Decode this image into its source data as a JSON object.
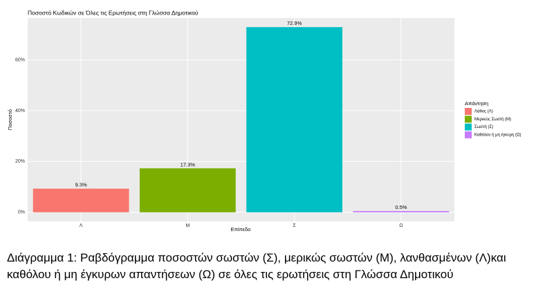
{
  "chart_data": {
    "type": "bar",
    "title": "Ποσοστό Κωδικών σε Όλες τις Ερωτήσεις στη Γλώσσα Δημοτικού",
    "x_label": "Επίπεδο",
    "y_label": "Ποσοστό",
    "categories": [
      "Λ",
      "Μ",
      "Σ",
      "Ω"
    ],
    "values": [
      9.3,
      17.3,
      72.9,
      0.5
    ],
    "value_labels": [
      "9.3%",
      "17.3%",
      "72.9%",
      "0.5%"
    ],
    "colors": [
      "#F8766D",
      "#7CAE00",
      "#00BFC4",
      "#C77CFF"
    ],
    "ylim": [
      -3.6,
      76.5
    ],
    "yticks": [
      {
        "value": 0,
        "label": "0%"
      },
      {
        "value": 20,
        "label": "20%"
      },
      {
        "value": 40,
        "label": "40%"
      },
      {
        "value": 60,
        "label": "60%"
      }
    ],
    "grid": true,
    "legend": {
      "title": "Απάντηση",
      "position": "right",
      "labels": [
        "Λάθος (Λ)",
        "Μερικώς Σωστή (Μ)",
        "Σωστή (Σ)",
        "Καθόλου ή μη έγκυρη (Ω)"
      ]
    }
  },
  "caption": {
    "lines": [
      "Διάγραμμα 1: Ραβδόγραμμα ποσοστών σωστών (Σ), μερικώς σωστών (Μ), λανθασμένων (Λ)και",
      "καθόλου ή μη έγκυρων απαντήσεων (Ω) σε όλες τις ερωτήσεις στη Γλώσσα Δημοτικού"
    ]
  }
}
